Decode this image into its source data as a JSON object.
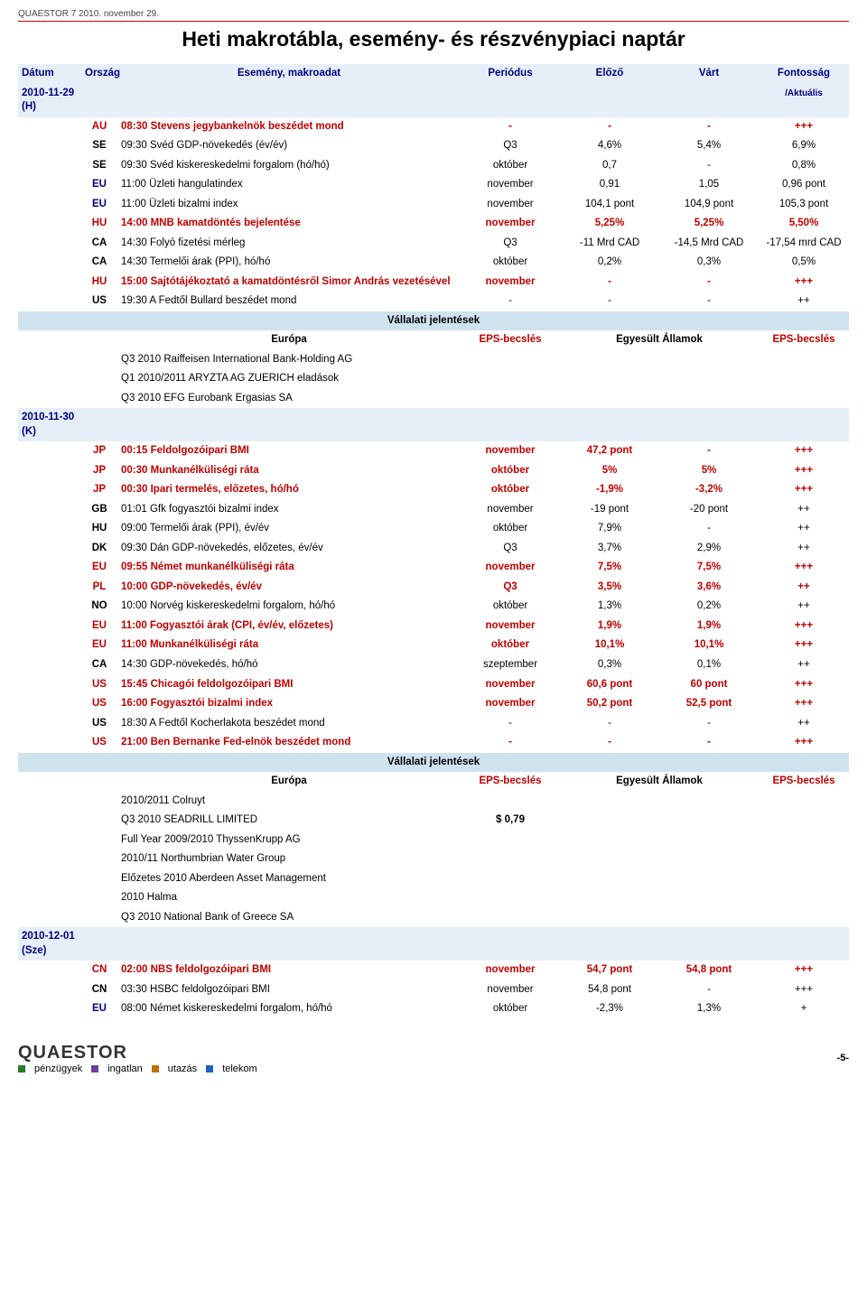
{
  "doc": {
    "corner": "QUAESTOR 7   2010. november 29.",
    "title": "Heti makrotábla, esemény- és részvénypiaci naptár",
    "page_number": "-5-"
  },
  "header": {
    "date": "Dátum",
    "country": "Ország",
    "event": "Esemény, makroadat",
    "period": "Periódus",
    "prev": "Előző",
    "exp": "Várt",
    "imp": "Fontosság",
    "imp_sub": "/Aktuális"
  },
  "dates": {
    "d1": "2010-11-29 (H)",
    "d2": "2010-11-30 (K)",
    "d3": "2010-12-01 (Sze)"
  },
  "section": {
    "corp": "Vállalati jelentések",
    "europe": "Európa",
    "eps": "EPS-becslés",
    "usa": "Egyesült Államok"
  },
  "d1rows": [
    {
      "cty": "AU",
      "ctyColor": "#c00000",
      "ev": "08:30 Stevens jegybankelnök beszédet mond",
      "per": "-",
      "prev": "-",
      "exp": "-",
      "imp": "+++",
      "red": true
    },
    {
      "cty": "SE",
      "ctyColor": "#000",
      "ev": "09:30 Svéd GDP-növekedés (év/év)",
      "per": "Q3",
      "prev": "4,6%",
      "exp": "5,4%",
      "imp": "6,9%",
      "red": false
    },
    {
      "cty": "SE",
      "ctyColor": "#000",
      "ev": "09:30 Svéd kiskereskedelmi forgalom (hó/hó)",
      "per": "október",
      "prev": "0,7",
      "exp": "-",
      "imp": "0,8%",
      "red": false
    },
    {
      "cty": "EU",
      "ctyColor": "#000080",
      "ev": "11:00 Üzleti hangulatindex",
      "per": "november",
      "prev": "0,91",
      "exp": "1,05",
      "imp": "0,96 pont",
      "red": false
    },
    {
      "cty": "EU",
      "ctyColor": "#000080",
      "ev": "11:00 Üzleti bizalmi index",
      "per": "november",
      "prev": "104,1 pont",
      "exp": "104,9 pont",
      "imp": "105,3 pont",
      "red": false
    },
    {
      "cty": "HU",
      "ctyColor": "#c00000",
      "ev": "14:00 MNB kamatdöntés bejelentése",
      "per": "november",
      "prev": "5,25%",
      "exp": "5,25%",
      "imp": "5,50%",
      "red": true
    },
    {
      "cty": "CA",
      "ctyColor": "#000",
      "ev": "14:30 Folyó fizetési mérleg",
      "per": "Q3",
      "prev": "-11 Mrd CAD",
      "exp": "-14,5 Mrd CAD",
      "imp": "-17,54 mrd CAD",
      "red": false
    },
    {
      "cty": "CA",
      "ctyColor": "#000",
      "ev": "14:30 Termelői árak (PPI), hó/hó",
      "per": "október",
      "prev": "0,2%",
      "exp": "0,3%",
      "imp": "0,5%",
      "red": false
    },
    {
      "cty": "HU",
      "ctyColor": "#c00000",
      "ev": "15:00 Sajtótájékoztató a kamatdöntésről Simor András vezetésével",
      "per": "november",
      "prev": "-",
      "exp": "-",
      "imp": "+++",
      "red": true
    },
    {
      "cty": "US",
      "ctyColor": "#000",
      "ev": "19:30 A Fedtől Bullard beszédet mond",
      "per": "-",
      "prev": "-",
      "exp": "-",
      "imp": "++",
      "red": false
    }
  ],
  "d1corp": {
    "eu": [
      "Q3 2010 Raiffeisen International Bank-Holding AG",
      "Q1 2010/2011 ARYZTA AG ZUERICH eladások",
      "Q3 2010 EFG Eurobank Ergasias SA"
    ]
  },
  "d2rows": [
    {
      "cty": "JP",
      "ctyColor": "#c00000",
      "ev": "00:15 Feldolgozóipari BMI",
      "per": "november",
      "prev": "47,2 pont",
      "exp": "-",
      "imp": "+++",
      "red": true
    },
    {
      "cty": "JP",
      "ctyColor": "#c00000",
      "ev": "00:30 Munkanélküliségi ráta",
      "per": "október",
      "prev": "5%",
      "exp": "5%",
      "imp": "+++",
      "red": true
    },
    {
      "cty": "JP",
      "ctyColor": "#c00000",
      "ev": "00:30 Ipari termelés, előzetes, hó/hó",
      "per": "október",
      "prev": "-1,9%",
      "exp": "-3,2%",
      "imp": "+++",
      "red": true
    },
    {
      "cty": "GB",
      "ctyColor": "#000",
      "ev": "01:01 Gfk fogyasztói bizalmi index",
      "per": "november",
      "prev": "-19 pont",
      "exp": "-20 pont",
      "imp": "++",
      "red": false
    },
    {
      "cty": "HU",
      "ctyColor": "#000",
      "ev": "09:00 Termelői árak (PPI), év/év",
      "per": "október",
      "prev": "7,9%",
      "exp": "-",
      "imp": "++",
      "red": false
    },
    {
      "cty": "DK",
      "ctyColor": "#000",
      "ev": "09:30 Dán GDP-növekedés, előzetes, év/év",
      "per": "Q3",
      "prev": "3,7%",
      "exp": "2,9%",
      "imp": "++",
      "red": false
    },
    {
      "cty": "EU",
      "ctyColor": "#c00000",
      "ev": "09:55 Német munkanélküliségi ráta",
      "per": "november",
      "prev": "7,5%",
      "exp": "7,5%",
      "imp": "+++",
      "red": true
    },
    {
      "cty": "PL",
      "ctyColor": "#c00000",
      "ev": "10:00 GDP-növekedés, év/év",
      "per": "Q3",
      "prev": "3,5%",
      "exp": "3,6%",
      "imp": "++",
      "red": true
    },
    {
      "cty": "NO",
      "ctyColor": "#000",
      "ev": "10:00 Norvég kiskereskedelmi forgalom, hó/hó",
      "per": "október",
      "prev": "1,3%",
      "exp": "0,2%",
      "imp": "++",
      "red": false
    },
    {
      "cty": "EU",
      "ctyColor": "#c00000",
      "ev": "11:00 Fogyasztói árak (CPI, év/év, előzetes)",
      "per": "november",
      "prev": "1,9%",
      "exp": "1,9%",
      "imp": "+++",
      "red": true
    },
    {
      "cty": "EU",
      "ctyColor": "#c00000",
      "ev": "11:00 Munkanélküliségi ráta",
      "per": "október",
      "prev": "10,1%",
      "exp": "10,1%",
      "imp": "+++",
      "red": true
    },
    {
      "cty": "CA",
      "ctyColor": "#000",
      "ev": "14:30 GDP-növekedés, hó/hó",
      "per": "szeptember",
      "prev": "0,3%",
      "exp": "0,1%",
      "imp": "++",
      "red": false
    },
    {
      "cty": "US",
      "ctyColor": "#c00000",
      "ev": "15:45 Chicagói feldolgozóipari BMI",
      "per": "november",
      "prev": "60,6 pont",
      "exp": "60 pont",
      "imp": "+++",
      "red": true
    },
    {
      "cty": "US",
      "ctyColor": "#c00000",
      "ev": "16:00 Fogyasztói bizalmi index",
      "per": "november",
      "prev": "50,2 pont",
      "exp": "52,5 pont",
      "imp": "+++",
      "red": true
    },
    {
      "cty": "US",
      "ctyColor": "#000",
      "ev": "18:30 A Fedtől Kocherlakota beszédet mond",
      "per": "-",
      "prev": "-",
      "exp": "-",
      "imp": "++",
      "red": false
    },
    {
      "cty": "US",
      "ctyColor": "#c00000",
      "ev": "21:00 Ben Bernanke Fed-elnök beszédet mond",
      "per": "-",
      "prev": "-",
      "exp": "-",
      "imp": "+++",
      "red": true
    }
  ],
  "d2corp": {
    "eu": [
      " 2010/2011 Colruyt",
      "Q3 2010 SEADRILL LIMITED",
      "Full Year 2009/2010 ThyssenKrupp AG",
      " 2010/11 Northumbrian Water Group",
      "Előzetes 2010 Aberdeen Asset Management",
      " 2010 Halma",
      "Q3 2010 National Bank of Greece SA"
    ],
    "eps": "$ 0,79"
  },
  "d3rows": [
    {
      "cty": "CN",
      "ctyColor": "#c00000",
      "ev": "02:00 NBS feldolgozóipari BMI",
      "per": "november",
      "prev": "54,7 pont",
      "exp": "54,8 pont",
      "imp": "+++",
      "red": true
    },
    {
      "cty": "CN",
      "ctyColor": "#000",
      "ev": "03:30 HSBC feldolgozóipari BMI",
      "per": "november",
      "prev": "54,8 pont",
      "exp": "-",
      "imp": "+++",
      "red": false
    },
    {
      "cty": "EU",
      "ctyColor": "#000080",
      "ev": "08:00 Német kiskereskedelmi forgalom, hó/hó",
      "per": "október",
      "prev": "-2,3%",
      "exp": "1,3%",
      "imp": "+",
      "red": false
    }
  ],
  "footer": {
    "logo": "QUAESTOR",
    "tags": [
      {
        "label": "pénzügyek",
        "color": "#2a7a2a"
      },
      {
        "label": "ingatlan",
        "color": "#6a3fa0"
      },
      {
        "label": "utazás",
        "color": "#c07000"
      },
      {
        "label": "telekom",
        "color": "#2060c0"
      }
    ]
  }
}
